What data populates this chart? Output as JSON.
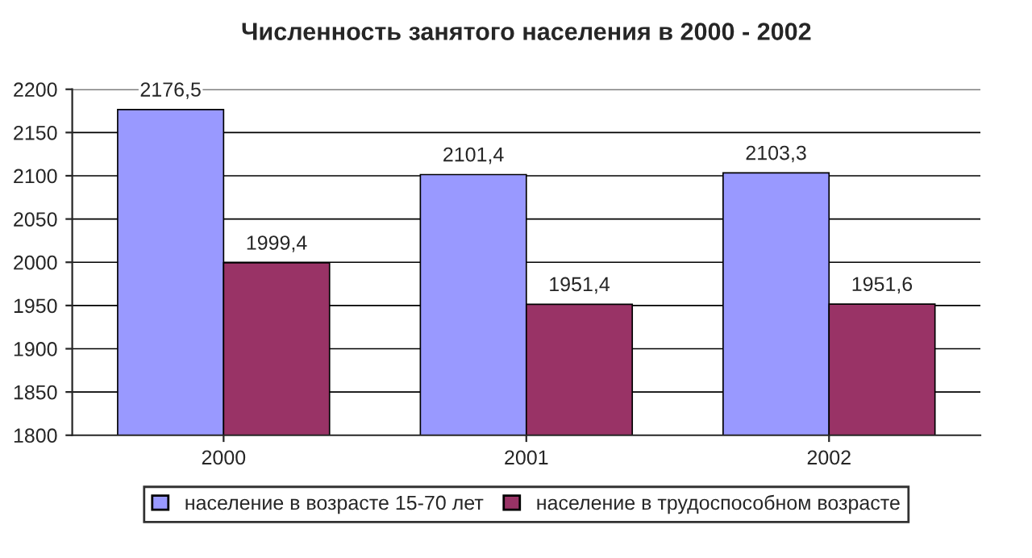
{
  "chart_data": {
    "type": "bar",
    "title": "Численность занятого населения в 2000 - 2002",
    "categories": [
      "2000",
      "2001",
      "2002"
    ],
    "series": [
      {
        "name": "население в возрасте 15-70 лет",
        "color": "#9999ff",
        "values": [
          2176.5,
          2101.4,
          2103.3
        ],
        "value_labels": [
          "2176,5",
          "2101,4",
          "2103,3"
        ]
      },
      {
        "name": "население в трудоспособном возрасте",
        "color": "#993366",
        "values": [
          1999.4,
          1951.4,
          1951.6
        ],
        "value_labels": [
          "1999,4",
          "1951,4",
          "1951,6"
        ]
      }
    ],
    "ylim": [
      1800,
      2200
    ],
    "yticks": [
      1800,
      1850,
      1900,
      1950,
      2000,
      2050,
      2100,
      2150,
      2200
    ],
    "grid": "y",
    "legend": "bottom"
  }
}
